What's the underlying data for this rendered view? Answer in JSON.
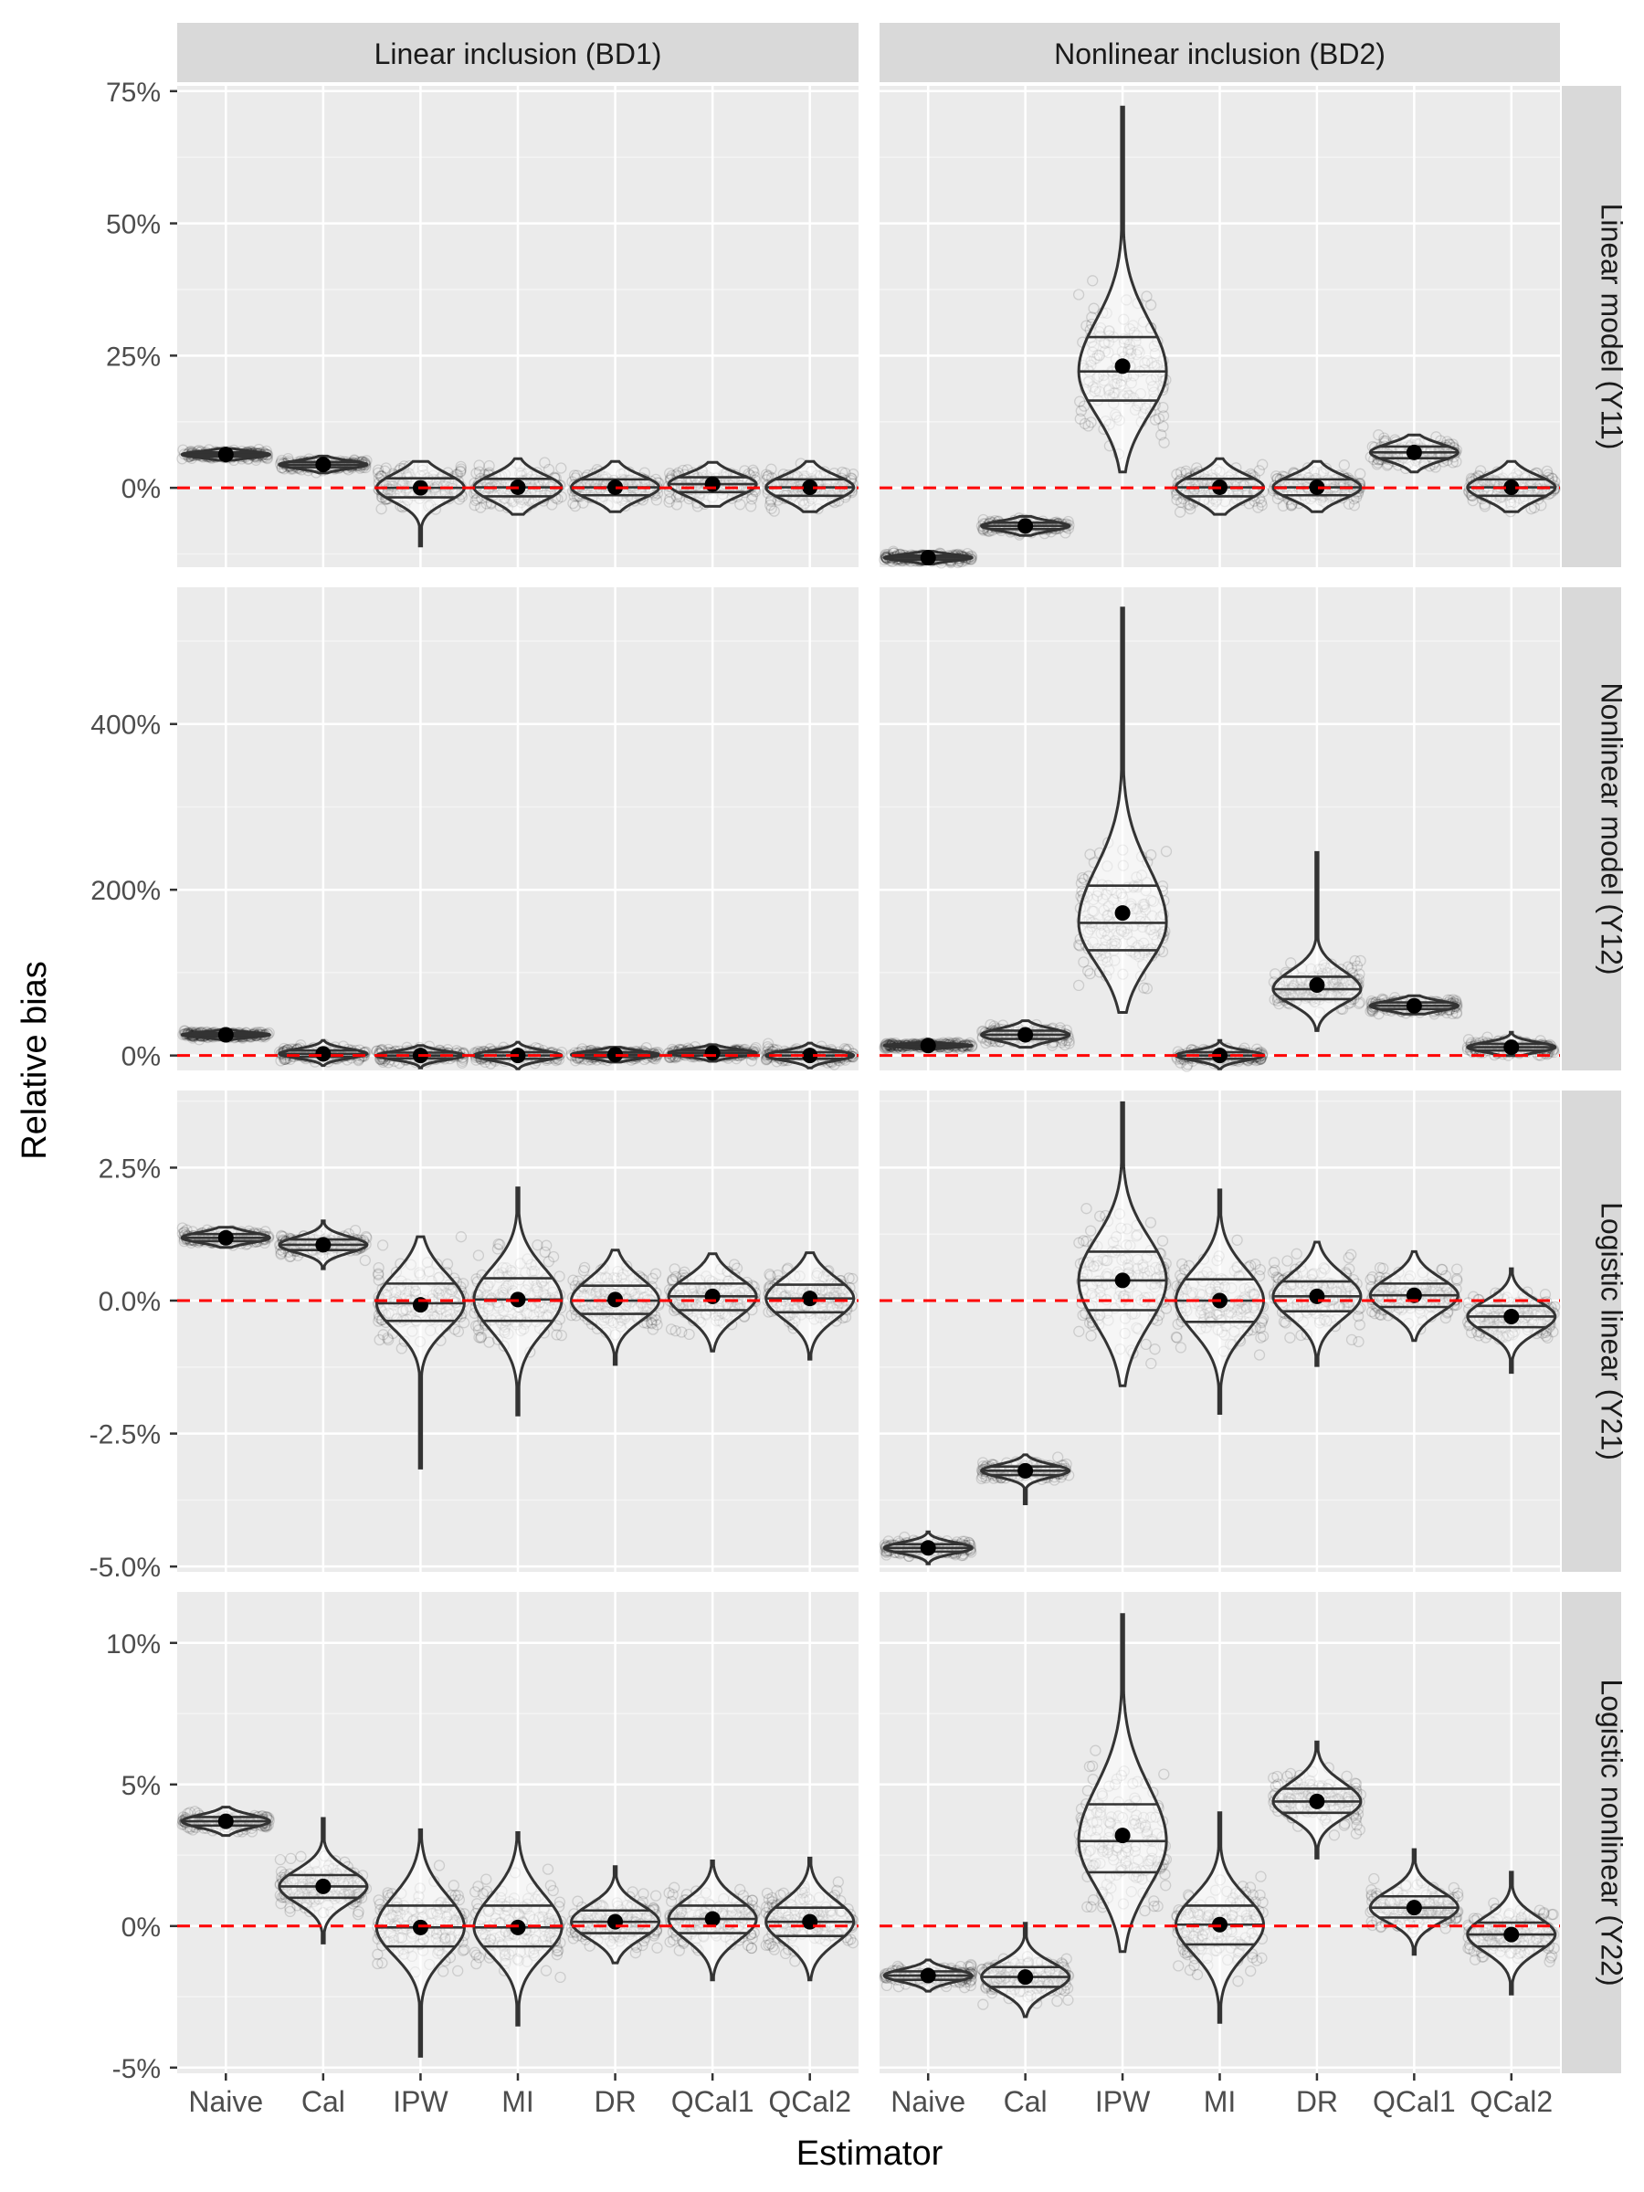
{
  "chart_data": {
    "type": "violin",
    "xlabel": "Estimator",
    "ylabel": "Relative bias",
    "categories": [
      "Naive",
      "Cal",
      "IPW",
      "MI",
      "DR",
      "QCal1",
      "QCal2"
    ],
    "columns": [
      "Linear inclusion (BD1)",
      "Nonlinear inclusion (BD2)"
    ],
    "rows": [
      "Linear model (Y11)",
      "Nonlinear model (Y12)",
      "Logistic linear (Y21)",
      "Logistic nonlinear (Y22)"
    ],
    "reference_line": 0,
    "panels": [
      {
        "row": 0,
        "yticks": [
          0,
          25,
          50,
          75
        ],
        "ytick_labels": [
          "0%",
          "25%",
          "50%",
          "75%"
        ],
        "ylim": [
          -15,
          76
        ],
        "groups": {
          "BD1": [
            {
              "mean": 6.3,
              "q": [
                5.9,
                6.3,
                6.7
              ],
              "min": 5.2,
              "max": 7.4
            },
            {
              "mean": 4.4,
              "q": [
                3.9,
                4.4,
                4.9
              ],
              "min": 2.8,
              "max": 6.0
            },
            {
              "mean": 0.0,
              "q": [
                -1.8,
                0.0,
                1.8
              ],
              "min": -11.0,
              "max": 5.0
            },
            {
              "mean": 0.1,
              "q": [
                -1.6,
                0.1,
                1.7
              ],
              "min": -5.0,
              "max": 5.5
            },
            {
              "mean": 0.1,
              "q": [
                -1.4,
                0.1,
                1.6
              ],
              "min": -4.5,
              "max": 5.0
            },
            {
              "mean": 0.7,
              "q": [
                -0.8,
                0.7,
                2.0
              ],
              "min": -3.5,
              "max": 4.8
            },
            {
              "mean": 0.1,
              "q": [
                -1.5,
                0.1,
                1.6
              ],
              "min": -4.5,
              "max": 5.0
            }
          ],
          "BD2": [
            {
              "mean": -13.2,
              "q": [
                -13.6,
                -13.2,
                -12.8
              ],
              "min": -14.4,
              "max": -12.0
            },
            {
              "mean": -7.2,
              "q": [
                -7.8,
                -7.2,
                -6.6
              ],
              "min": -9.0,
              "max": -5.4
            },
            {
              "mean": 23.0,
              "q": [
                16.5,
                22.0,
                28.5
              ],
              "min": 3.0,
              "max": 72.0
            },
            {
              "mean": 0.1,
              "q": [
                -1.6,
                0.1,
                1.7
              ],
              "min": -5.0,
              "max": 5.5
            },
            {
              "mean": 0.1,
              "q": [
                -1.4,
                0.1,
                1.6
              ],
              "min": -4.5,
              "max": 5.0
            },
            {
              "mean": 6.7,
              "q": [
                5.6,
                6.7,
                7.8
              ],
              "min": 3.0,
              "max": 10.0
            },
            {
              "mean": 0.1,
              "q": [
                -1.5,
                0.1,
                1.6
              ],
              "min": -4.5,
              "max": 5.0
            }
          ]
        }
      },
      {
        "row": 1,
        "yticks": [
          0,
          200,
          400
        ],
        "ytick_labels": [
          "0%",
          "200%",
          "400%"
        ],
        "ylim": [
          -18,
          565
        ],
        "groups": {
          "BD1": [
            {
              "mean": 25.0,
              "q": [
                23.0,
                25.0,
                27.0
              ],
              "min": 19.0,
              "max": 31.0
            },
            {
              "mean": 2.0,
              "q": [
                -1.5,
                2.0,
                6.0
              ],
              "min": -12.0,
              "max": 18.0
            },
            {
              "mean": 0.0,
              "q": [
                -3.5,
                0.0,
                3.5
              ],
              "min": -15.0,
              "max": 12.0
            },
            {
              "mean": 0.0,
              "q": [
                -4.0,
                0.0,
                4.0
              ],
              "min": -16.0,
              "max": 16.0
            },
            {
              "mean": 1.0,
              "q": [
                -2.0,
                1.0,
                4.0
              ],
              "min": -8.0,
              "max": 10.0
            },
            {
              "mean": 3.0,
              "q": [
                0.0,
                3.0,
                6.0
              ],
              "min": -7.0,
              "max": 13.0
            },
            {
              "mean": 0.0,
              "q": [
                -4.0,
                0.0,
                4.0
              ],
              "min": -15.0,
              "max": 15.0
            }
          ],
          "BD2": [
            {
              "mean": 12.0,
              "q": [
                10.5,
                12.0,
                13.5
              ],
              "min": 6.0,
              "max": 18.0
            },
            {
              "mean": 25.0,
              "q": [
                20.0,
                25.0,
                30.0
              ],
              "min": 10.0,
              "max": 42.0
            },
            {
              "mean": 172.0,
              "q": [
                127.0,
                160.0,
                205.0
              ],
              "min": 52.0,
              "max": 540.0
            },
            {
              "mean": 0.0,
              "q": [
                -4.0,
                0.0,
                4.0
              ],
              "min": -16.0,
              "max": 18.0
            },
            {
              "mean": 85.0,
              "q": [
                68.0,
                80.0,
                95.0
              ],
              "min": 30.0,
              "max": 245.0
            },
            {
              "mean": 60.0,
              "q": [
                56.0,
                60.0,
                64.0
              ],
              "min": 50.0,
              "max": 72.0
            },
            {
              "mean": 10.0,
              "q": [
                6.0,
                10.0,
                14.0
              ],
              "min": 0.0,
              "max": 28.0
            }
          ]
        }
      },
      {
        "row": 2,
        "yticks": [
          -5.0,
          -2.5,
          0.0,
          2.5
        ],
        "ytick_labels": [
          "-5.0%",
          "-2.5%",
          "0.0%",
          "2.5%"
        ],
        "ylim": [
          -5.1,
          3.95
        ],
        "groups": {
          "BD1": [
            {
              "mean": 1.18,
              "q": [
                1.12,
                1.18,
                1.25
              ],
              "min": 1.0,
              "max": 1.38
            },
            {
              "mean": 1.05,
              "q": [
                0.95,
                1.05,
                1.15
              ],
              "min": 0.6,
              "max": 1.5
            },
            {
              "mean": -0.08,
              "q": [
                -0.38,
                -0.05,
                0.32
              ],
              "min": -3.15,
              "max": 1.2
            },
            {
              "mean": 0.02,
              "q": [
                -0.38,
                0.02,
                0.42
              ],
              "min": -2.15,
              "max": 2.12
            },
            {
              "mean": 0.02,
              "q": [
                -0.25,
                0.0,
                0.28
              ],
              "min": -1.2,
              "max": 0.95
            },
            {
              "mean": 0.08,
              "q": [
                -0.18,
                0.08,
                0.32
              ],
              "min": -0.95,
              "max": 0.88
            },
            {
              "mean": 0.04,
              "q": [
                -0.22,
                0.04,
                0.3
              ],
              "min": -1.1,
              "max": 0.9
            }
          ],
          "BD2": [
            {
              "mean": -4.65,
              "q": [
                -4.72,
                -4.65,
                -4.58
              ],
              "min": -4.95,
              "max": -4.35
            },
            {
              "mean": -3.2,
              "q": [
                -3.28,
                -3.2,
                -3.12
              ],
              "min": -3.82,
              "max": -2.9
            },
            {
              "mean": 0.38,
              "q": [
                -0.18,
                0.38,
                0.92
              ],
              "min": -1.6,
              "max": 3.72
            },
            {
              "mean": 0.0,
              "q": [
                -0.4,
                0.0,
                0.4
              ],
              "min": -2.12,
              "max": 2.08
            },
            {
              "mean": 0.08,
              "q": [
                -0.2,
                0.08,
                0.36
              ],
              "min": -1.22,
              "max": 1.1
            },
            {
              "mean": 0.1,
              "q": [
                -0.12,
                0.1,
                0.32
              ],
              "min": -0.75,
              "max": 0.92
            },
            {
              "mean": -0.3,
              "q": [
                -0.5,
                -0.3,
                -0.1
              ],
              "min": -1.35,
              "max": 0.6
            }
          ]
        }
      },
      {
        "row": 3,
        "yticks": [
          -5,
          0,
          5,
          10
        ],
        "ytick_labels": [
          "-5%",
          "0%",
          "5%",
          "10%"
        ],
        "ylim": [
          -5.2,
          11.8
        ],
        "groups": {
          "BD1": [
            {
              "mean": 3.7,
              "q": [
                3.55,
                3.7,
                3.85
              ],
              "min": 3.2,
              "max": 4.2
            },
            {
              "mean": 1.4,
              "q": [
                1.0,
                1.4,
                1.8
              ],
              "min": -0.6,
              "max": 3.8
            },
            {
              "mean": -0.05,
              "q": [
                -0.72,
                -0.05,
                0.72
              ],
              "min": -4.6,
              "max": 3.4
            },
            {
              "mean": -0.05,
              "q": [
                -0.72,
                -0.05,
                0.72
              ],
              "min": -3.5,
              "max": 3.3
            },
            {
              "mean": 0.15,
              "q": [
                -0.25,
                0.15,
                0.55
              ],
              "min": -1.3,
              "max": 2.1
            },
            {
              "mean": 0.25,
              "q": [
                -0.25,
                0.25,
                0.72
              ],
              "min": -1.9,
              "max": 2.3
            },
            {
              "mean": 0.15,
              "q": [
                -0.35,
                0.15,
                0.65
              ],
              "min": -1.9,
              "max": 2.4
            }
          ],
          "BD2": [
            {
              "mean": -1.75,
              "q": [
                -1.9,
                -1.75,
                -1.6
              ],
              "min": -2.3,
              "max": -1.2
            },
            {
              "mean": -1.8,
              "q": [
                -2.15,
                -1.8,
                -1.45
              ],
              "min": -3.2,
              "max": 0.1
            },
            {
              "mean": 3.2,
              "q": [
                1.9,
                3.0,
                4.3
              ],
              "min": -0.9,
              "max": 11.0
            },
            {
              "mean": 0.05,
              "q": [
                -0.65,
                0.05,
                0.72
              ],
              "min": -3.4,
              "max": 4.0
            },
            {
              "mean": 4.4,
              "q": [
                4.0,
                4.4,
                4.85
              ],
              "min": 2.4,
              "max": 6.5
            },
            {
              "mean": 0.65,
              "q": [
                0.3,
                0.65,
                1.05
              ],
              "min": -1.0,
              "max": 2.7
            },
            {
              "mean": -0.3,
              "q": [
                -0.72,
                -0.3,
                0.12
              ],
              "min": -2.4,
              "max": 1.9
            }
          ]
        }
      }
    ]
  }
}
